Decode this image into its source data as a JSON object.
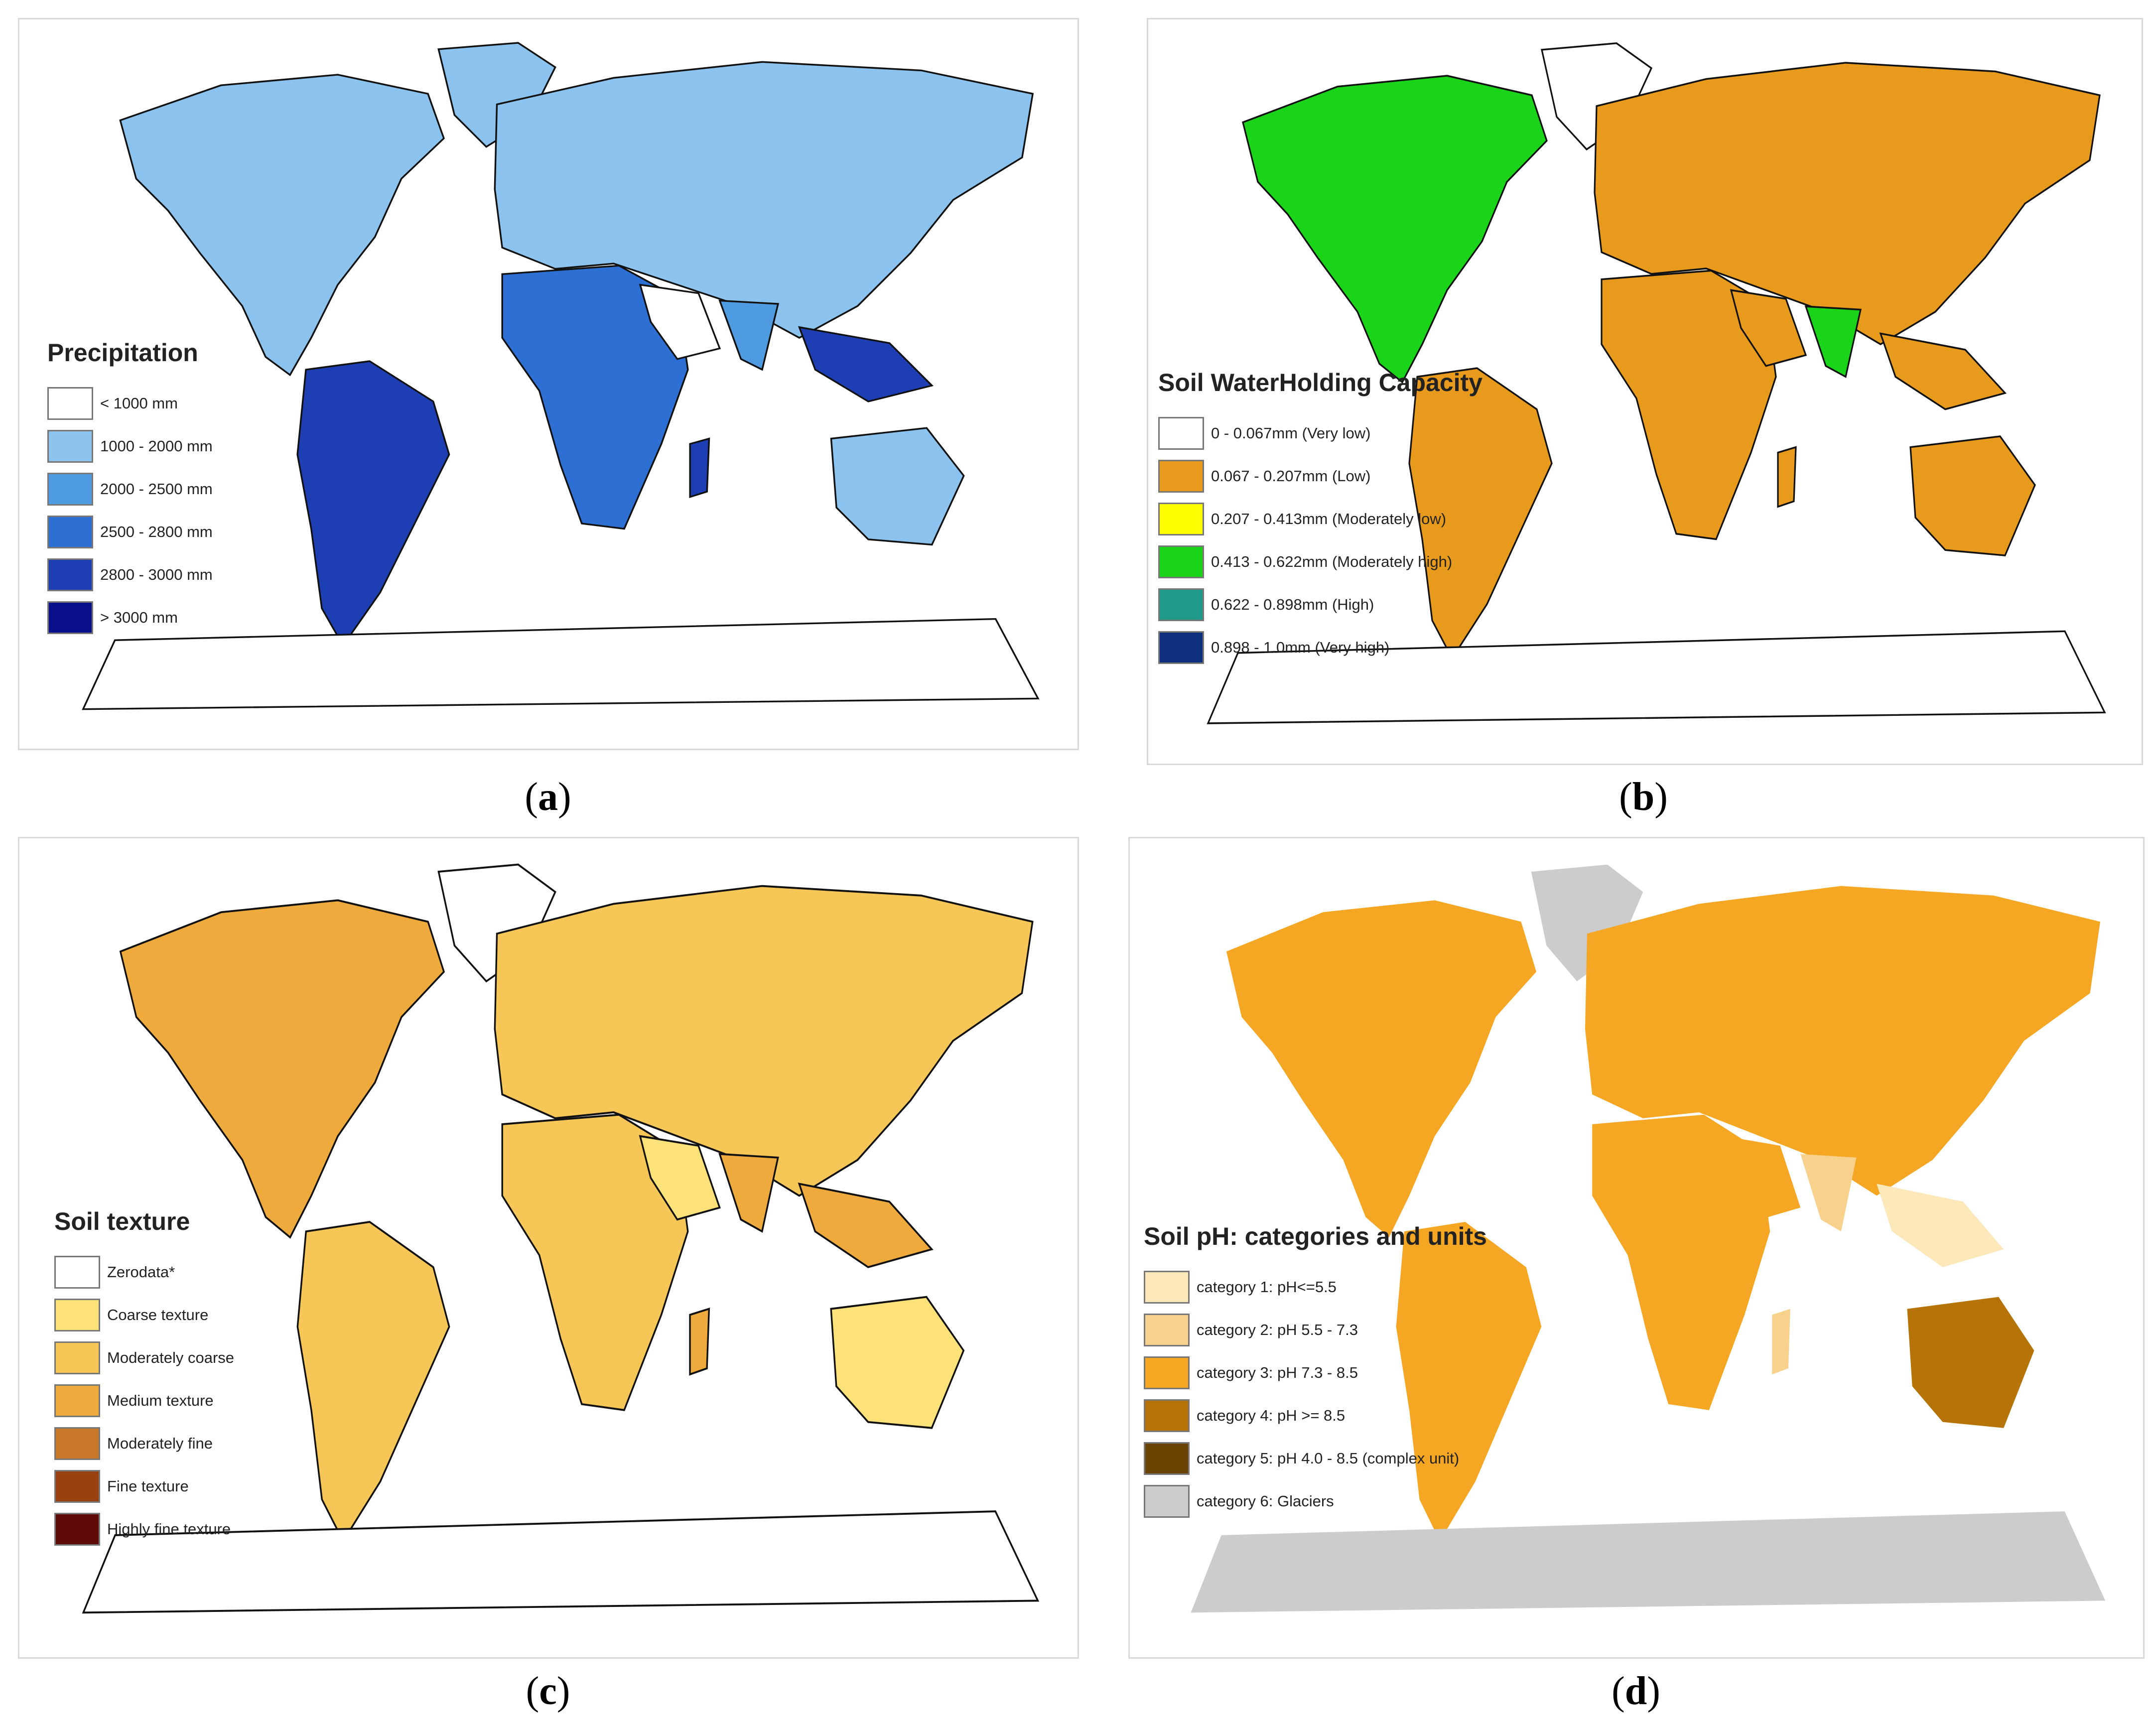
{
  "panels": [
    {
      "id": "a",
      "caption": "a",
      "theme": "blue",
      "legend": {
        "title": "Precipitation",
        "items": [
          {
            "label": "< 1000 mm",
            "color": "#ffffff"
          },
          {
            "label": "1000 - 2000 mm",
            "color": "#8cc3ee"
          },
          {
            "label": "2000 - 2500 mm",
            "color": "#4f9be2"
          },
          {
            "label": "2500 - 2800 mm",
            "color": "#2e6fd4"
          },
          {
            "label": "2800 - 3000 mm",
            "color": "#1d3fb3"
          },
          {
            "label": "> 3000 mm",
            "color": "#0a0f8a"
          }
        ]
      }
    },
    {
      "id": "b",
      "caption": "b",
      "theme": "whc",
      "legend": {
        "title": "Soil WaterHolding Capacity",
        "items": [
          {
            "label": "0 - 0.067mm (Very low)",
            "color": "#ffffff"
          },
          {
            "label": "0.067 - 0.207mm (Low)",
            "color": "#e89a1c"
          },
          {
            "label": "0.207 - 0.413mm (Moderately low)",
            "color": "#ffff00"
          },
          {
            "label": "0.413 - 0.622mm (Moderately high)",
            "color": "#19d419"
          },
          {
            "label": "0.622 - 0.898mm (High)",
            "color": "#1f9a8a"
          },
          {
            "label": "0.898 - 1.0mm (Very high)",
            "color": "#102f7e"
          }
        ]
      }
    },
    {
      "id": "c",
      "caption": "c",
      "theme": "texture",
      "legend": {
        "title": "Soil texture",
        "items": [
          {
            "label": "Zerodata*",
            "color": "#ffffff"
          },
          {
            "label": "Coarse texture",
            "color": "#fde27a"
          },
          {
            "label": "Moderately coarse",
            "color": "#f6c657"
          },
          {
            "label": "Medium texture",
            "color": "#eeaa3c"
          },
          {
            "label": "Moderately fine",
            "color": "#c9782a"
          },
          {
            "label": "Fine texture",
            "color": "#98400f"
          },
          {
            "label": "Highly fine texture",
            "color": "#5e0a06"
          }
        ]
      }
    },
    {
      "id": "d",
      "caption": "d",
      "theme": "ph",
      "legend": {
        "title": "Soil pH: categories and units",
        "items": [
          {
            "label": "category 1: pH<=5.5",
            "color": "#fce8b8"
          },
          {
            "label": "category 2: pH 5.5 - 7.3",
            "color": "#f8d18c"
          },
          {
            "label": "category 3: pH 7.3 - 8.5",
            "color": "#f5a623"
          },
          {
            "label": "category 4: pH >= 8.5",
            "color": "#b57308"
          },
          {
            "label": "category 5: pH 4.0 - 8.5 (complex unit)",
            "color": "#6b4303"
          },
          {
            "label": "category 6: Glaciers",
            "color": "#cccccc"
          }
        ]
      }
    }
  ]
}
